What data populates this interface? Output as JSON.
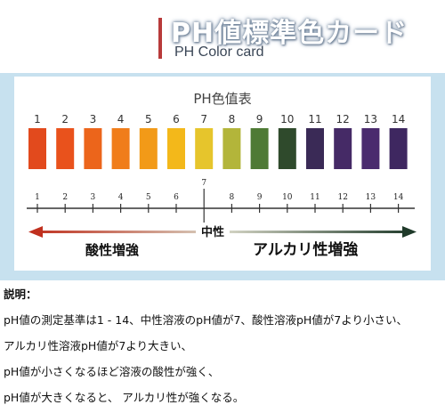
{
  "header": {
    "title": "PH値標準色カード",
    "subtitle": "PH Color card"
  },
  "card": {
    "title": "PH色值表",
    "swatches": [
      {
        "label": "1",
        "color": "#e24a1d"
      },
      {
        "label": "2",
        "color": "#e9521c"
      },
      {
        "label": "3",
        "color": "#ec651b"
      },
      {
        "label": "4",
        "color": "#f07d1a"
      },
      {
        "label": "5",
        "color": "#f29a18"
      },
      {
        "label": "6",
        "color": "#f3b81a"
      },
      {
        "label": "7",
        "color": "#e6c52c"
      },
      {
        "label": "8",
        "color": "#b3b53a"
      },
      {
        "label": "9",
        "color": "#4e7a35"
      },
      {
        "label": "10",
        "color": "#2f4a2c"
      },
      {
        "label": "11",
        "color": "#3a2a56"
      },
      {
        "label": "12",
        "color": "#452a66"
      },
      {
        "label": "13",
        "color": "#4a2b6e"
      },
      {
        "label": "14",
        "color": "#3e2760"
      }
    ],
    "axis_ticks": [
      "1",
      "2",
      "3",
      "4",
      "5",
      "6",
      "7",
      "8",
      "9",
      "10",
      "11",
      "12",
      "13",
      "14"
    ],
    "neutral_label": "中性",
    "acid_label": "酸性増強",
    "alkali_label": "アルカリ性増強",
    "acid_color": "#c0301e",
    "alkali_color": "#1f3a2a"
  },
  "notes": {
    "heading": "説明：",
    "lines": [
      "pH値の測定基準は1 - 14、中性溶液のpH値が7、酸性溶液pH値が7より小さい、",
      "アルカリ性溶液pH値が7より大きい、",
      "pH値が小さくなるほど溶液の酸性が強く、",
      "pH値が大きくなると、 アルカリ性が強くなる。"
    ]
  }
}
